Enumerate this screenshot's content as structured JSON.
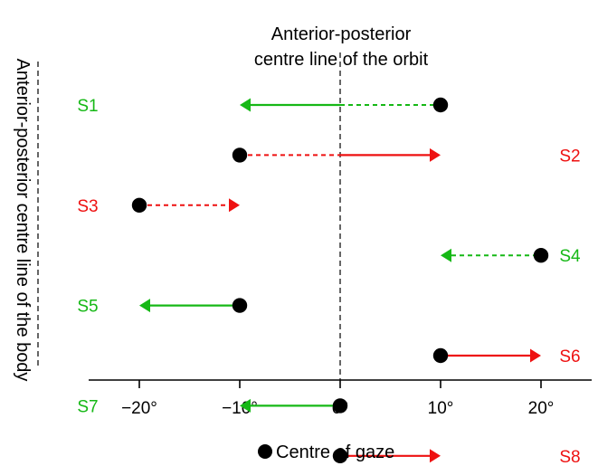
{
  "figure": {
    "title_lines": [
      "Anterior-posterior",
      "centre line of the orbit"
    ],
    "side_label": "Anterior-posterior centre line of the body",
    "legend_label": "Centre of gaze",
    "x_ticks": [
      "−20°",
      "−10°",
      "0°",
      "10°",
      "20°"
    ],
    "colors": {
      "green": "#16b816",
      "red": "#ee1111",
      "axis": "#000000"
    }
  },
  "chart_data": {
    "type": "scatter",
    "x_range": [
      -25,
      25
    ],
    "x_tick_values": [
      -20,
      -10,
      0,
      10,
      20
    ],
    "unit": "°",
    "legend": "Centre of gaze",
    "rows": [
      {
        "label": "S1",
        "label_side": "left",
        "color": "green",
        "gaze": 10,
        "dashed": [
          0,
          10
        ],
        "solid": [
          -10,
          0
        ],
        "arrow_to": -10
      },
      {
        "label": "S2",
        "label_side": "right",
        "color": "red",
        "gaze": -10,
        "dashed": [
          -10,
          0
        ],
        "solid": [
          0,
          10
        ],
        "arrow_to": 10
      },
      {
        "label": "S3",
        "label_side": "left",
        "color": "red",
        "gaze": -20,
        "dashed": [
          -20,
          -10
        ],
        "solid": null,
        "arrow_to": -10
      },
      {
        "label": "S4",
        "label_side": "right",
        "color": "green",
        "gaze": 20,
        "dashed": [
          10,
          20
        ],
        "solid": null,
        "arrow_to": 10
      },
      {
        "label": "S5",
        "label_side": "left",
        "color": "green",
        "gaze": -10,
        "dashed": null,
        "solid": [
          -20,
          -10
        ],
        "arrow_to": -20
      },
      {
        "label": "S6",
        "label_side": "right",
        "color": "red",
        "gaze": 10,
        "dashed": null,
        "solid": [
          10,
          20
        ],
        "arrow_to": 20
      },
      {
        "label": "S7",
        "label_side": "left",
        "color": "green",
        "gaze": 0,
        "dashed": null,
        "solid": [
          -10,
          0
        ],
        "arrow_to": -10
      },
      {
        "label": "S8",
        "label_side": "right",
        "color": "red",
        "gaze": 0,
        "dashed": null,
        "solid": [
          0,
          10
        ],
        "arrow_to": 10
      }
    ]
  }
}
